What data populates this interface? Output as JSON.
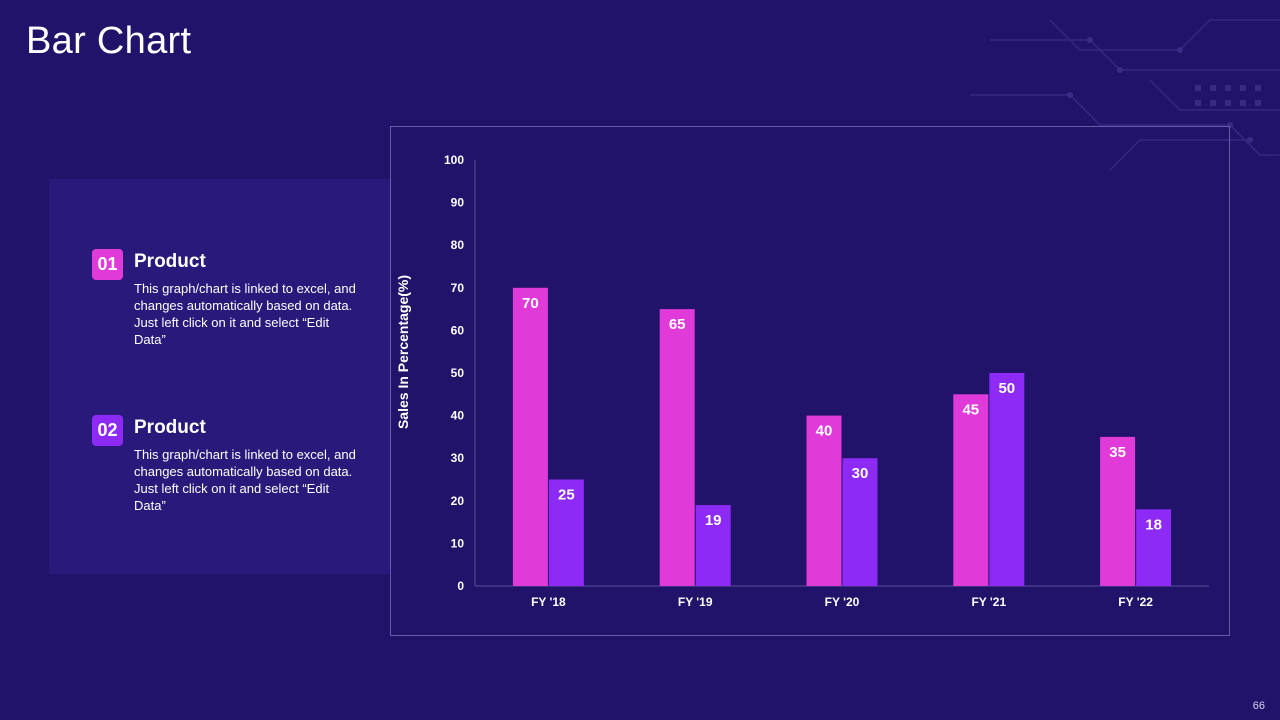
{
  "slide": {
    "title": "Bar Chart",
    "page_number": "66"
  },
  "items": [
    {
      "number": "01",
      "title": "Product",
      "description": "This graph/chart is linked to excel, and changes automatically based on data. Just left click on it and select “Edit Data”"
    },
    {
      "number": "02",
      "title": "Product",
      "description": "This graph/chart is linked to excel, and changes automatically based on data. Just left click on it and select “Edit Data”"
    }
  ],
  "colors": {
    "background": "#22136a",
    "series1": "#e03ad9",
    "series2": "#8d2af5"
  },
  "chart_data": {
    "type": "bar",
    "title": "",
    "xlabel": "",
    "ylabel": "Sales In Percentage(%)",
    "categories": [
      "FY '18",
      "FY '19",
      "FY '20",
      "FY '21",
      "FY '22"
    ],
    "series": [
      {
        "name": "Product 01",
        "values": [
          70,
          65,
          40,
          45,
          35
        ]
      },
      {
        "name": "Product 02",
        "values": [
          25,
          19,
          30,
          50,
          18
        ]
      }
    ],
    "ylim": [
      0,
      100
    ],
    "yticks": [
      0,
      10,
      20,
      30,
      40,
      50,
      60,
      70,
      80,
      90,
      100
    ],
    "grid": false
  }
}
